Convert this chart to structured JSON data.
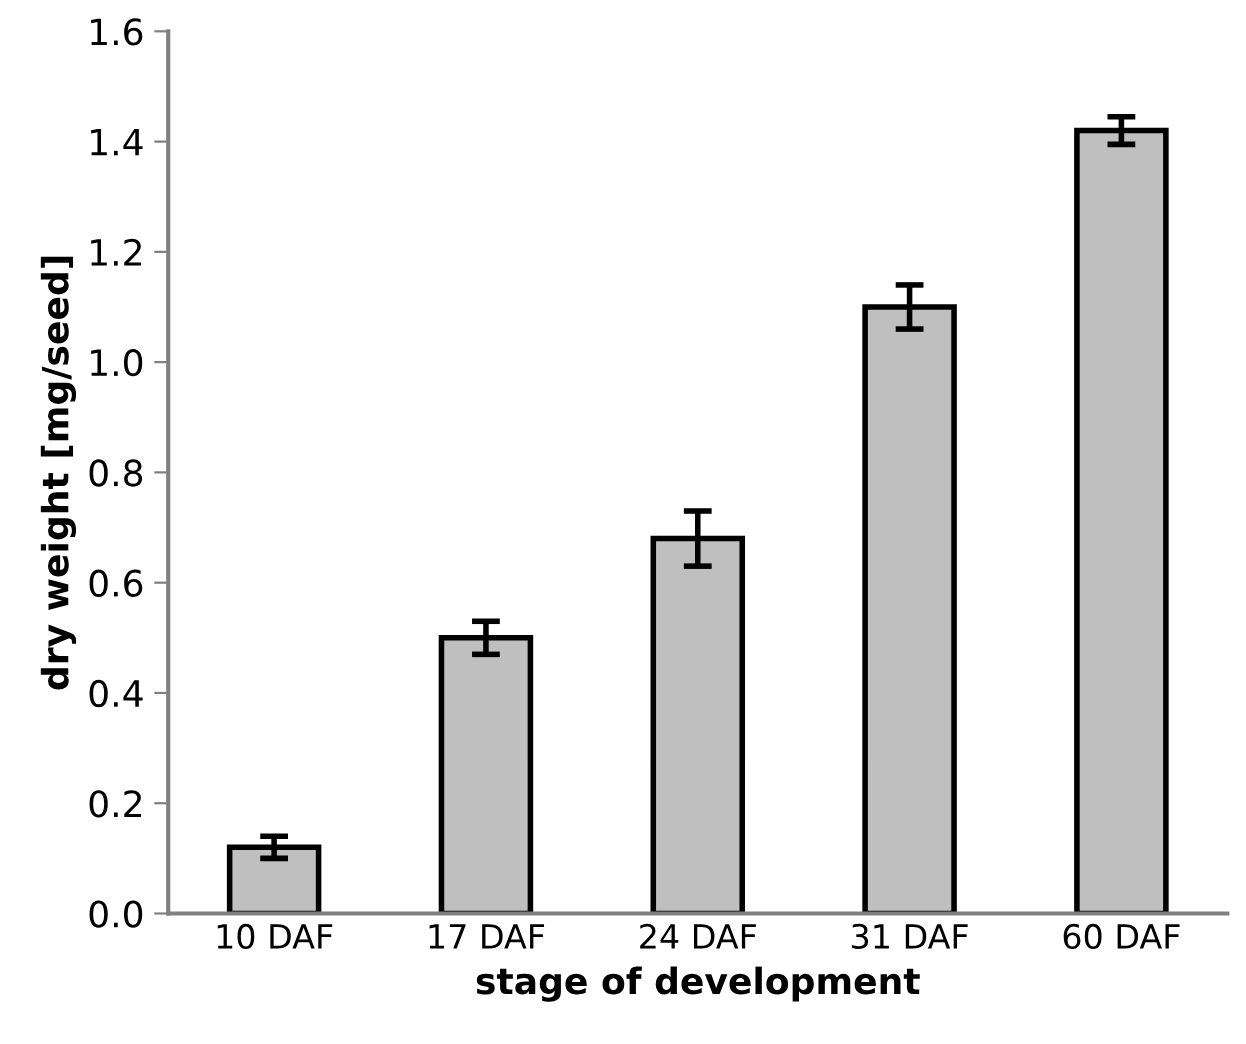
{
  "chart_data": {
    "type": "bar",
    "xlabel": "stage of development",
    "ylabel": "dry weight [mg/seed]",
    "categories": [
      "10 DAF",
      "17 DAF",
      "24 DAF",
      "31 DAF",
      "60 DAF"
    ],
    "values": [
      0.12,
      0.5,
      0.68,
      1.1,
      1.42
    ],
    "errors": [
      0.02,
      0.03,
      0.05,
      0.04,
      0.025
    ],
    "color": "#bfbfbf",
    "ylim": [
      0,
      1.6
    ],
    "yticks": [
      {
        "value": 0,
        "label": "0.0"
      },
      0.2,
      0.4,
      0.6,
      0.8,
      {
        "value": 1,
        "label": "1.0"
      },
      1.2,
      1.4,
      1.6
    ],
    "grid": false
  }
}
